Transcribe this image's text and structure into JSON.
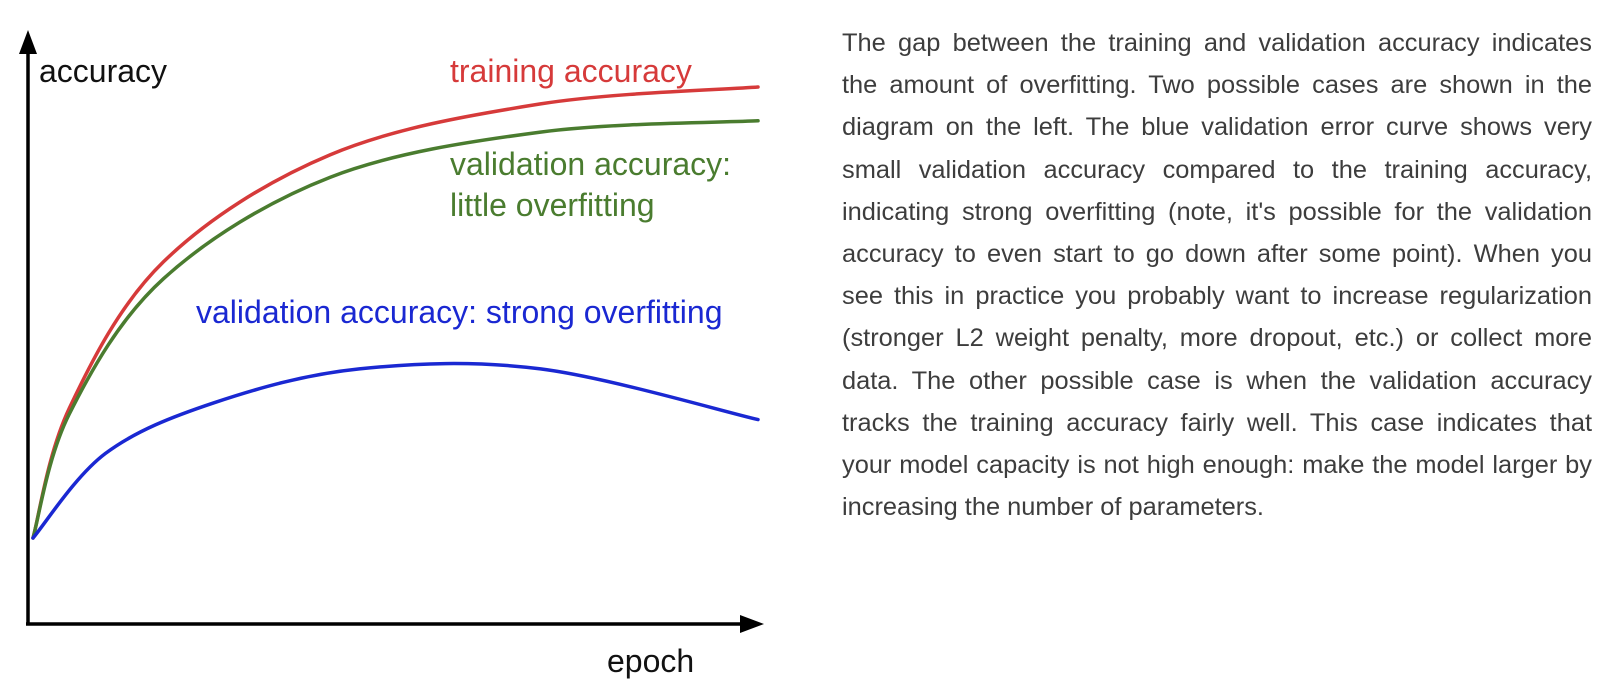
{
  "chart_data": {
    "type": "line",
    "xlabel": "epoch",
    "ylabel": "accuracy",
    "grid": false,
    "axis_ticks": false,
    "series": [
      {
        "name": "training accuracy",
        "color": "#d63a3a",
        "points": [
          [
            0,
            0.2
          ],
          [
            0.05,
            0.43
          ],
          [
            0.18,
            0.69
          ],
          [
            0.41,
            0.88
          ],
          [
            0.7,
            0.97
          ],
          [
            1.0,
            1.0
          ]
        ]
      },
      {
        "name": "validation accuracy: little overfitting",
        "color": "#4a7c2f",
        "points": [
          [
            0,
            0.2
          ],
          [
            0.05,
            0.42
          ],
          [
            0.18,
            0.66
          ],
          [
            0.41,
            0.84
          ],
          [
            0.7,
            0.92
          ],
          [
            1.0,
            0.94
          ]
        ]
      },
      {
        "name": "validation accuracy: strong overfitting",
        "color": "#1a28d2",
        "points": [
          [
            0,
            0.2
          ],
          [
            0.1,
            0.35
          ],
          [
            0.25,
            0.44
          ],
          [
            0.45,
            0.5
          ],
          [
            0.7,
            0.5
          ],
          [
            1.0,
            0.41
          ]
        ]
      }
    ]
  },
  "series_labels": [
    [
      "training accuracy"
    ],
    [
      "validation accuracy:",
      "little overfitting"
    ],
    [
      "validation accuracy: strong overfitting"
    ]
  ],
  "explanation": "The gap between the training and validation accuracy indicates the amount of overfitting. Two possible cases are shown in the diagram on the left. The blue validation error curve shows very small validation accuracy compared to the training accuracy, indicating strong overfitting (note, it's possible for the validation accuracy to even start to go down after some point). When you see this in practice you probably want to increase regularization (stronger L2 weight penalty, more dropout, etc.) or collect more data. The other possible case is when the validation accuracy tracks the training accuracy fairly well. This case indicates that your model capacity is not high enough: make the model larger by increasing the number of parameters."
}
